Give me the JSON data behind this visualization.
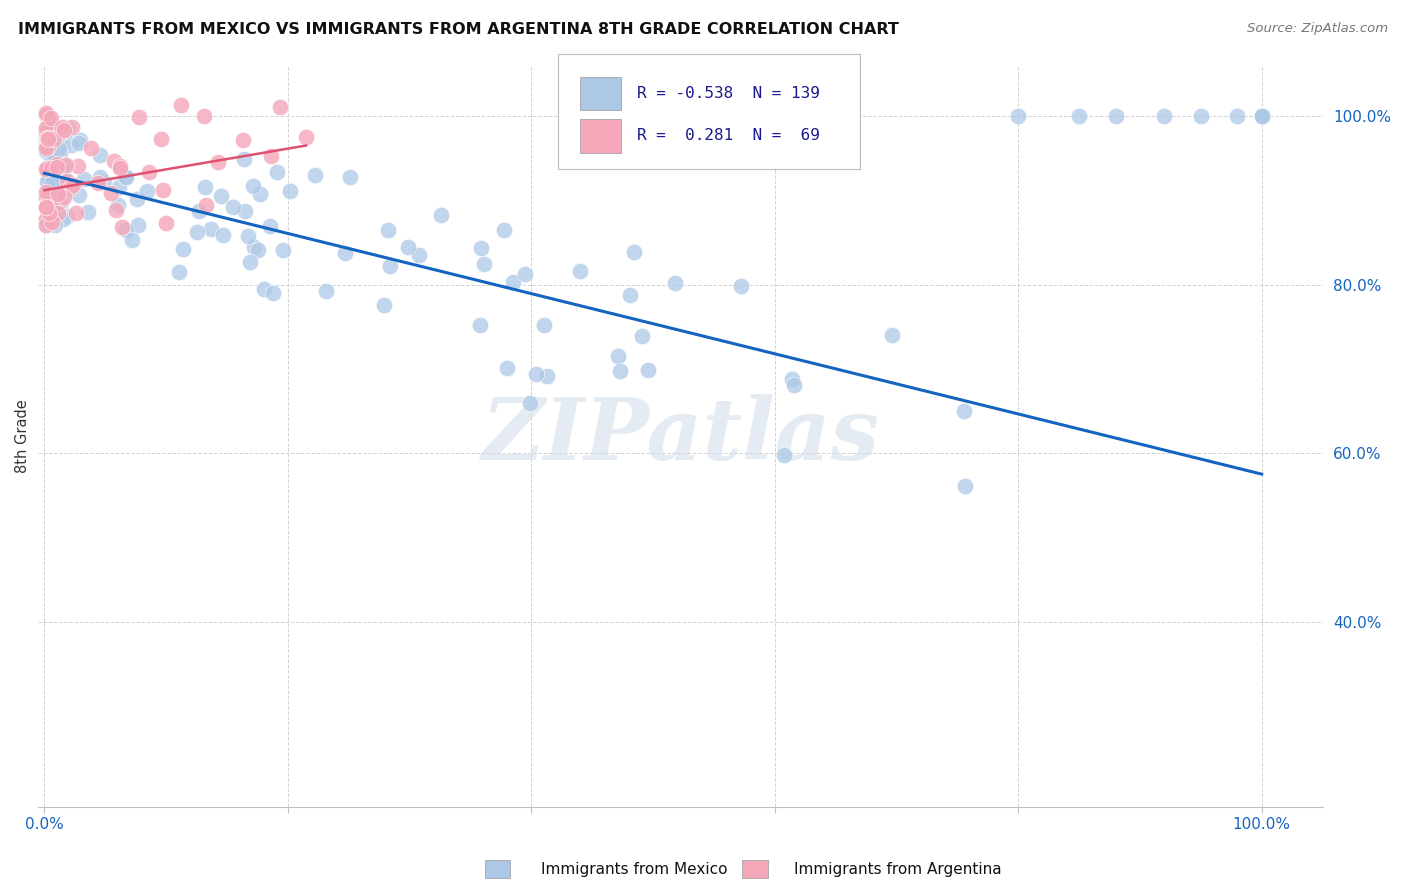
{
  "title": "IMMIGRANTS FROM MEXICO VS IMMIGRANTS FROM ARGENTINA 8TH GRADE CORRELATION CHART",
  "source": "Source: ZipAtlas.com",
  "ylabel": "8th Grade",
  "legend_label_blue": "Immigrants from Mexico",
  "legend_label_pink": "Immigrants from Argentina",
  "R_blue": -0.538,
  "N_blue": 139,
  "R_pink": 0.281,
  "N_pink": 69,
  "blue_color": "#adc8e6",
  "blue_line_color": "#1565c0",
  "pink_color": "#f4a7b9",
  "pink_line_color": "#e05070",
  "watermark": "ZIPatlas",
  "blue_line_x0": 0.0,
  "blue_line_y0": 0.932,
  "blue_line_x1": 1.0,
  "blue_line_y1": 0.575,
  "pink_line_x0": 0.0,
  "pink_line_y0": 0.912,
  "pink_line_x1": 0.215,
  "pink_line_y1": 0.965,
  "xlim_min": -0.005,
  "xlim_max": 1.05,
  "ylim_min": 0.18,
  "ylim_max": 1.06,
  "yticks": [
    0.4,
    0.6,
    0.8,
    1.0
  ],
  "ytick_labels": [
    "40.0%",
    "60.0%",
    "80.0%",
    "100.0%"
  ],
  "xticks": [
    0.0,
    0.2,
    0.4,
    0.6,
    0.8,
    1.0
  ],
  "xtick_labels": [
    "0.0%",
    "",
    "",
    "",
    "",
    "100.0%"
  ]
}
